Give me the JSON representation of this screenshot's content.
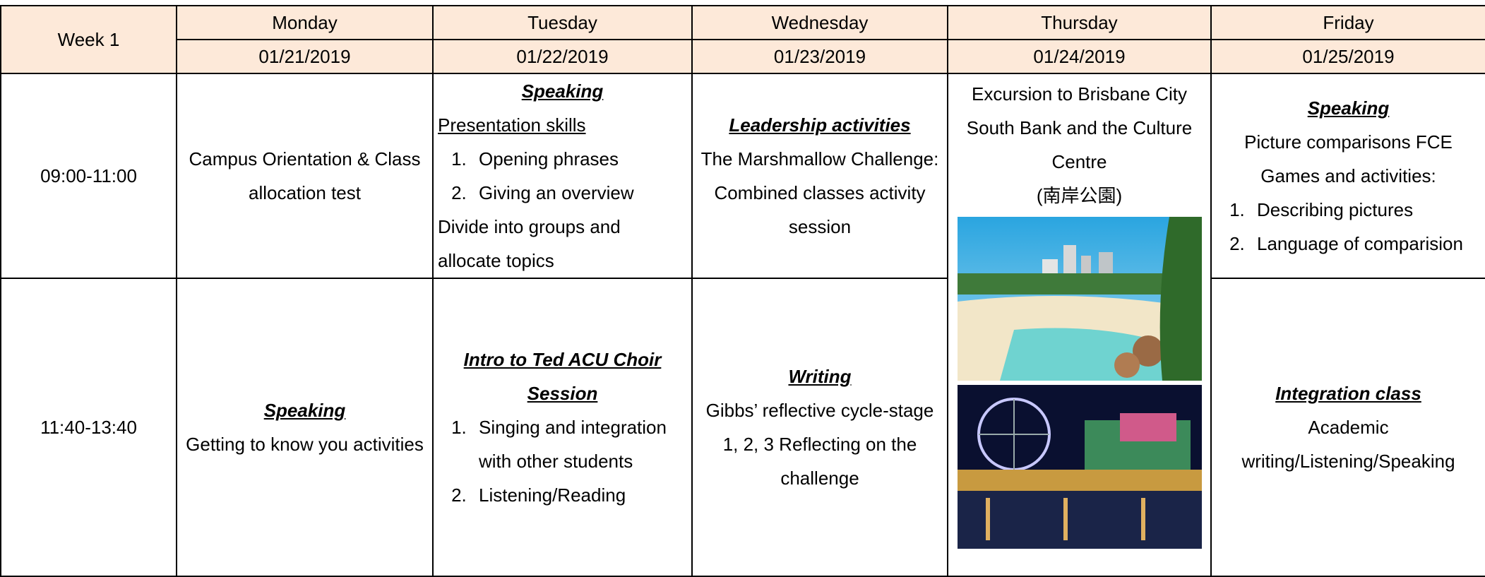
{
  "table": {
    "week": "Week 1",
    "days": [
      {
        "name": "Monday",
        "date": "01/21/2019"
      },
      {
        "name": "Tuesday",
        "date": "01/22/2019"
      },
      {
        "name": "Wednesday",
        "date": "01/23/2019"
      },
      {
        "name": "Thursday",
        "date": "01/24/2019"
      },
      {
        "name": "Friday",
        "date": "01/25/2019"
      }
    ],
    "rows": [
      {
        "time": "09:00-11:00",
        "cells": [
          [
            {
              "text": "Campus Orientation & Class allocation test"
            }
          ],
          [
            {
              "heading": "Speaking"
            },
            {
              "underlined": "Presentation skills"
            },
            {
              "items": [
                "Opening phrases",
                "Giving an overview"
              ]
            },
            {
              "note": "Divide into groups and allocate topics"
            }
          ],
          [
            {
              "heading": "Leadership activities"
            },
            {
              "text": "The Marshmallow Challenge: Combined classes activity session"
            }
          ],
          [
            {
              "text": "Excursion to Brisbane City South Bank and the Culture Centre"
            },
            {
              "text": "(南岸公園)"
            }
          ],
          [
            {
              "heading": "Speaking"
            },
            {
              "text": "Picture comparisons FCE Games and activities:"
            },
            {
              "items": [
                "Describing pictures",
                "Language of comparision"
              ]
            }
          ]
        ]
      },
      {
        "time": "11:40-13:40",
        "cells": [
          [
            {
              "heading": "Speaking"
            },
            {
              "text": "Getting to know you activities"
            }
          ],
          [
            {
              "heading": "Intro to Ted ACU Choir Session"
            },
            {
              "items": [
                "Singing and integration with other students",
                "Listening/Reading"
              ]
            }
          ],
          [
            {
              "heading": "Writing"
            },
            {
              "text": "Gibbs’ reflective cycle-stage 1, 2, 3 Reflecting on the challenge"
            }
          ],
          [
            {
              "heading": "Integration class"
            },
            {
              "text": "Academic writing/Listening/Speaking"
            }
          ]
        ]
      }
    ]
  }
}
